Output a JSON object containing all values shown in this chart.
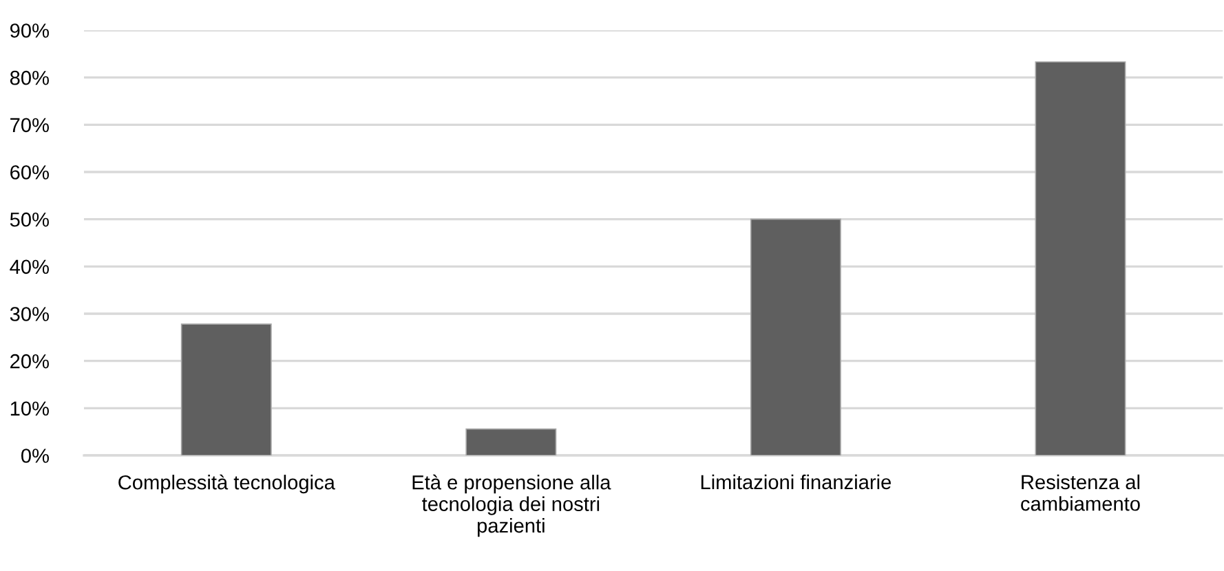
{
  "chart_data": {
    "type": "bar",
    "categories": [
      "Complessità tecnologica",
      "Età e propensione alla\ntecnologia dei nostri\npazienti",
      "Limitazioni finanziarie",
      "Resistenza al\ncambiamento"
    ],
    "values": [
      27.8,
      5.6,
      50,
      83.3
    ],
    "color": "#5f5f5f",
    "ylim": [
      0,
      90
    ],
    "yticks": [
      {
        "value": 0,
        "label": "0%"
      },
      {
        "value": 10,
        "label": "10%"
      },
      {
        "value": 20,
        "label": "20%"
      },
      {
        "value": 30,
        "label": "30%"
      },
      {
        "value": 40,
        "label": "40%"
      },
      {
        "value": 50,
        "label": "50%"
      },
      {
        "value": 60,
        "label": "60%"
      },
      {
        "value": 70,
        "label": "70%"
      },
      {
        "value": 80,
        "label": "80%"
      },
      {
        "value": 90,
        "label": "90%"
      }
    ],
    "grid": "y",
    "legend": false
  }
}
